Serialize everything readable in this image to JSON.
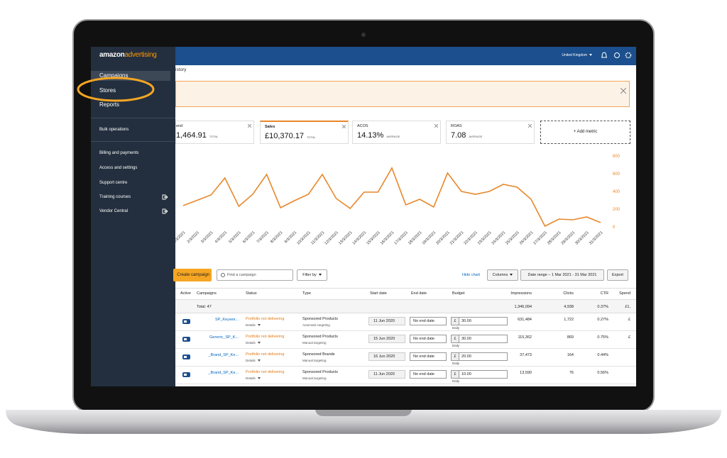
{
  "sidebar": {
    "logo": [
      "amazon",
      "advertising"
    ],
    "nav": [
      "Campaigns",
      "Stores",
      "Reports",
      "Bulk operations",
      "Billing and payments",
      "Access and settings",
      "Support centre",
      "Training courses",
      "Vendor Central"
    ]
  },
  "header": {
    "region": "United Kingdom"
  },
  "breadcrumb": "istory",
  "metrics": [
    {
      "label": "end",
      "value": "1,464.91",
      "unit": "TOTAL"
    },
    {
      "label": "Sales",
      "value": "£10,370.17",
      "unit": "TOTAL"
    },
    {
      "label": "ACOS",
      "value": "14.13%",
      "unit": "AVERAGE"
    },
    {
      "label": "ROAS",
      "value": "7.08",
      "unit": "AVERAGE"
    }
  ],
  "add_metric": "+ Add metric",
  "chart": {
    "type": "line",
    "color": "#e8872a",
    "x": [
      "1/3/2021",
      "2/3/2021",
      "3/3/2021",
      "4/3/2021",
      "5/3/2021",
      "6/3/2021",
      "7/3/2021",
      "8/3/2021",
      "9/3/2021",
      "10/3/2021",
      "11/3/2021",
      "12/3/2021",
      "13/3/2021",
      "14/3/2021",
      "15/3/2021",
      "16/3/2021",
      "17/3/2021",
      "18/3/2021",
      "19/3/2021",
      "20/3/2021",
      "21/3/2021",
      "22/3/2021",
      "23/3/2021",
      "24/3/2021",
      "25/3/2021",
      "26/3/2021",
      "27/3/2021",
      "28/3/2021",
      "29/3/2021",
      "30/3/2021",
      "31/3/2021"
    ],
    "values": [
      240,
      300,
      360,
      552,
      232,
      368,
      592,
      216,
      296,
      368,
      592,
      320,
      208,
      392,
      392,
      664,
      248,
      312,
      224,
      608,
      400,
      368,
      400,
      480,
      448,
      312,
      8,
      88,
      80,
      112,
      48
    ],
    "ylim": [
      0,
      800
    ],
    "yticks": [
      0,
      200,
      400,
      600,
      800
    ]
  },
  "toolbar": {
    "create": "Create campaign",
    "search": "Find a campaign",
    "filter": "Filter by",
    "hide_chart": "Hide chart",
    "columns": "Columns",
    "date_range": "Date range – 1 Mar 2021 - 31 Mar 2021",
    "export": "Export"
  },
  "table": {
    "headers": [
      "Active",
      "Campaigns",
      "Status",
      "Type",
      "Start date",
      "End date",
      "Budget",
      "Impressions",
      "Clicks",
      "CTR",
      "Spend"
    ],
    "total": {
      "label": "Total: 47",
      "impressions": "1,346,094",
      "clicks": "4,938",
      "ctr": "0.37%",
      "spend": "£1,"
    },
    "rows": [
      {
        "campaign": "SP_Keywor...",
        "status": "Portfolio not delivering",
        "details": "Details",
        "type": "Sponsored Products",
        "targeting": "Automatic targeting",
        "start": "11 Jun 2020",
        "end": "No end date",
        "currency": "£",
        "budget": "30.00",
        "period": "Daily",
        "impressions": "631,484",
        "clicks": "1,722",
        "ctr": "0.27%",
        "spend": "£"
      },
      {
        "campaign": "Generic_SP_K...",
        "status": "Portfolio not delivering",
        "details": "Details",
        "type": "Sponsored Products",
        "targeting": "Manual targeting",
        "start": "15 Jun 2020",
        "end": "No end date",
        "currency": "£",
        "budget": "30.00",
        "period": "Daily",
        "impressions": "115,362",
        "clicks": "869",
        "ctr": "0.75%",
        "spend": "£"
      },
      {
        "campaign": "_Brand_SP_Ke...",
        "status": "Portfolio not delivering",
        "details": "Details",
        "type": "Sponsored Brands",
        "targeting": "Manual targeting",
        "start": "16 Jun 2020",
        "end": "No end date",
        "currency": "£",
        "budget": "20.00",
        "period": "Daily",
        "impressions": "37,473",
        "clicks": "164",
        "ctr": "0.44%"
      },
      {
        "campaign": "_Brand_SP_Ke...",
        "status": "Portfolio not delivering",
        "details": "Details",
        "type": "Sponsored Products",
        "targeting": "Manual targeting",
        "start": "11 Jun 2020",
        "end": "No end date",
        "currency": "£",
        "budget": "10.00",
        "period": "Daily",
        "impressions": "13,590",
        "clicks": "76",
        "ctr": "0.56%"
      }
    ]
  }
}
